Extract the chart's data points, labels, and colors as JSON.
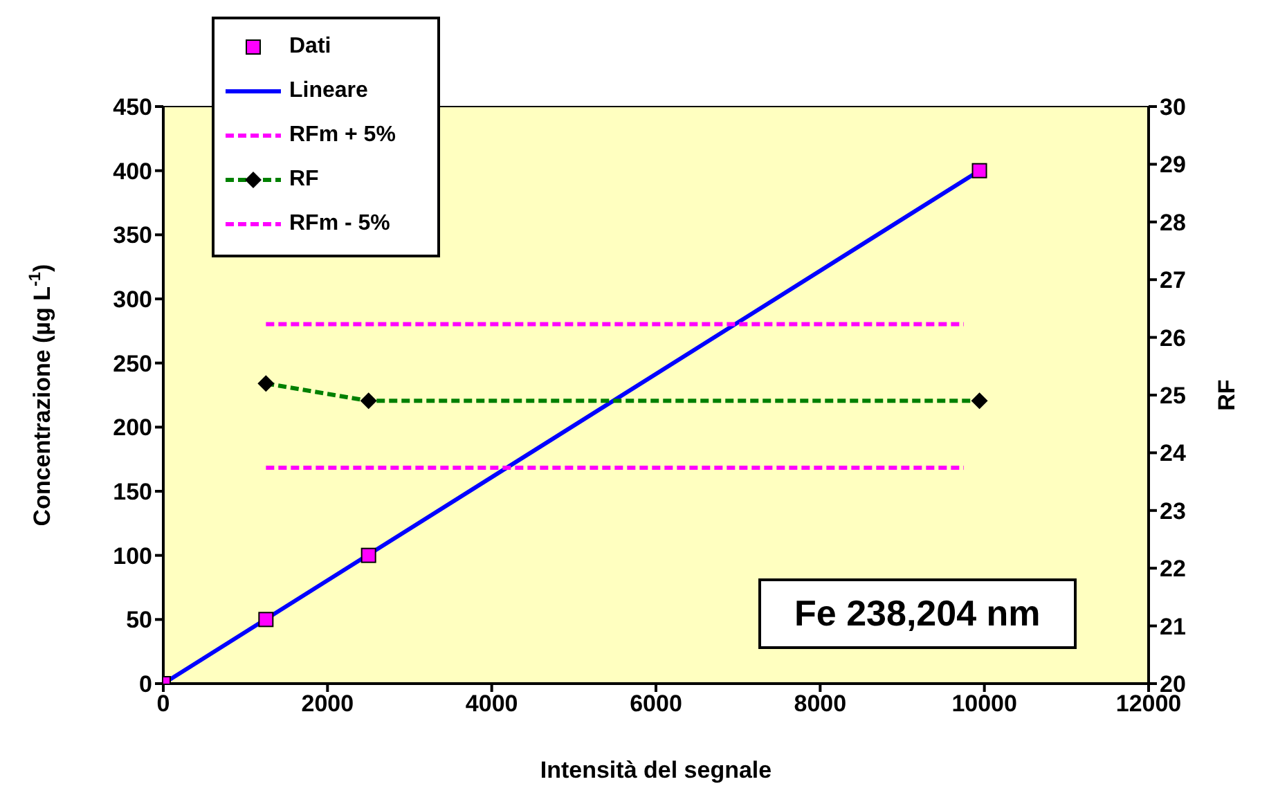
{
  "chart_data": {
    "type": "scatter",
    "xlabel": "Intensità del segnale",
    "ylabel": "Concentrazione (µg L$^{-1}$)",
    "y2label": "RF",
    "xlim": [
      0,
      12000
    ],
    "xticks": [
      0,
      2000,
      4000,
      6000,
      8000,
      10000,
      12000
    ],
    "ylim": [
      0,
      450
    ],
    "yticks": [
      0,
      50,
      100,
      150,
      200,
      250,
      300,
      350,
      400,
      450
    ],
    "y2lim": [
      20,
      30
    ],
    "y2ticks": [
      20,
      21,
      22,
      23,
      24,
      25,
      26,
      27,
      28,
      29,
      30
    ],
    "legend": "top left",
    "annotations": [
      "Fe 238,204 nm"
    ],
    "series": [
      {
        "name": "Dati",
        "marker": "square",
        "color": "#ff00ff",
        "x": [
          0,
          1250,
          2500,
          9940
        ],
        "values": [
          0,
          50,
          100,
          400
        ]
      },
      {
        "name": "Lineare",
        "type": "line",
        "marker": "none",
        "line_style": "solid",
        "color": "#0000ff",
        "x": [
          0,
          9940
        ],
        "values": [
          0,
          400
        ]
      },
      {
        "name": "RFm + 5%",
        "type": "line",
        "marker": "none",
        "line_style": "dashed",
        "axis": "y2",
        "color": "#ff00ff",
        "x": [
          1250,
          9750
        ],
        "values": [
          26.23,
          26.23
        ]
      },
      {
        "name": "RF",
        "type": "line",
        "marker": "diamond",
        "line_style": "dashed",
        "axis": "y2",
        "color": "#008000",
        "x": [
          1250,
          2500,
          9940
        ],
        "values": [
          25.2,
          24.9,
          24.9
        ]
      },
      {
        "name": "RFm - 5%",
        "type": "line",
        "marker": "none",
        "line_style": "dashed",
        "axis": "y2",
        "color": "#ff00ff",
        "x": [
          1250,
          9750
        ],
        "values": [
          23.74,
          23.74
        ]
      }
    ]
  }
}
